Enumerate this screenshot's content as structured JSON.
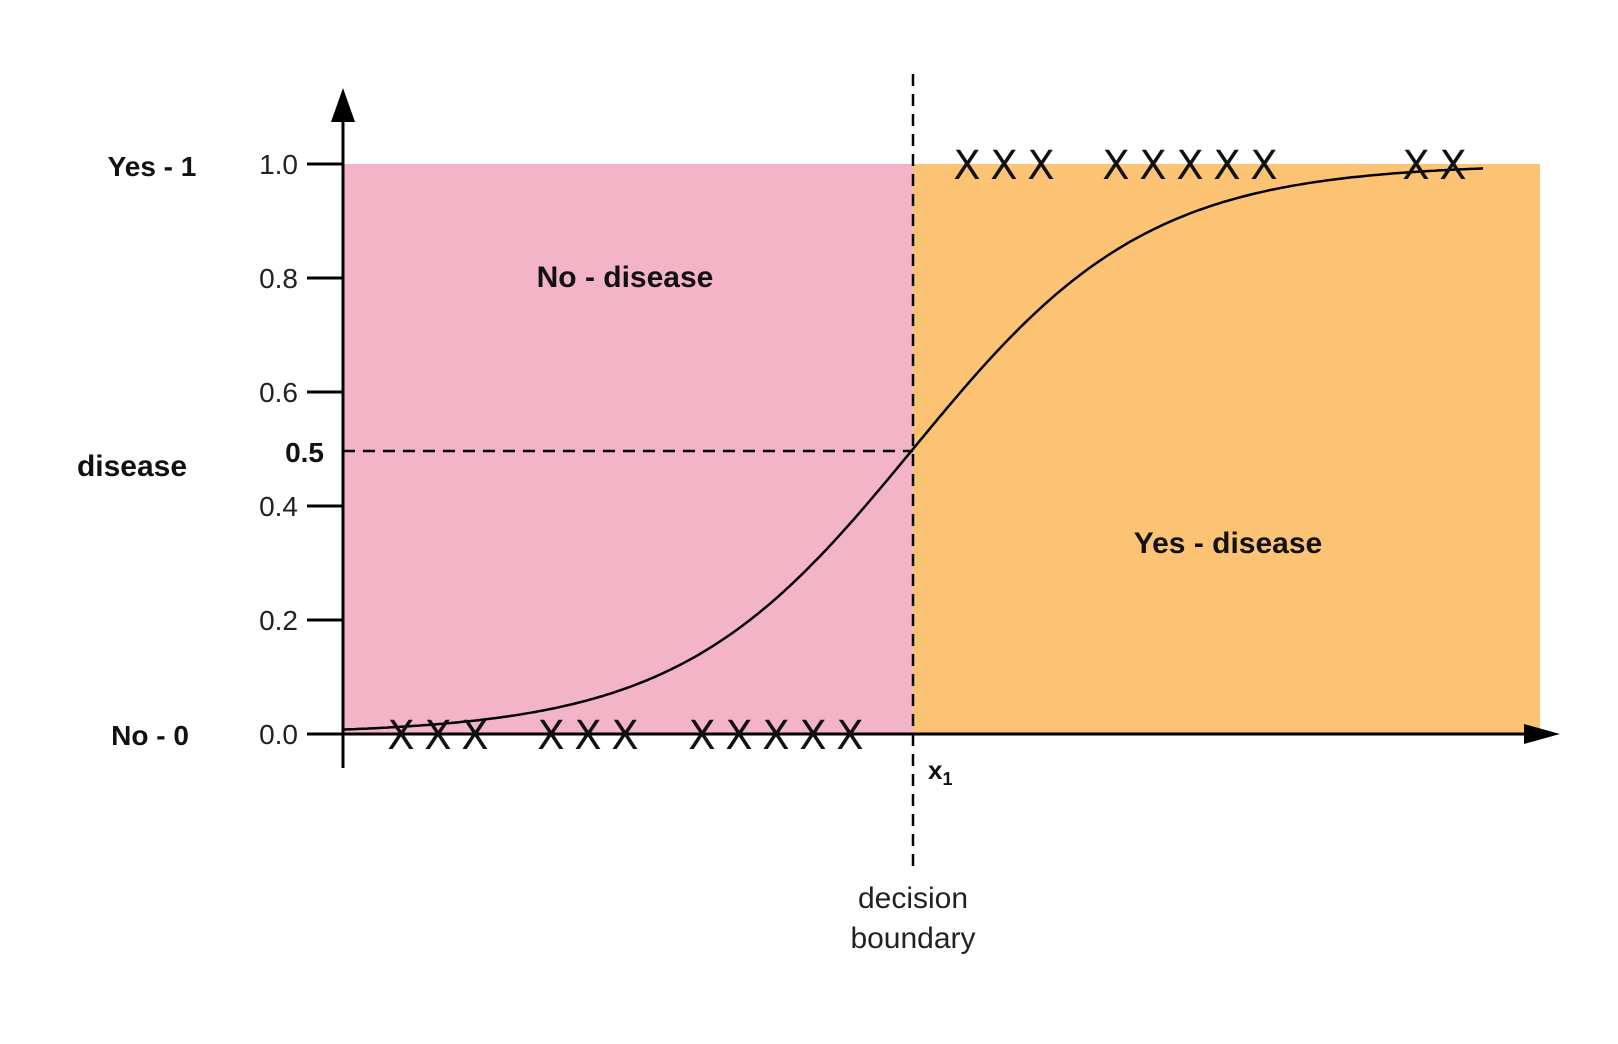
{
  "chart_data": {
    "type": "line",
    "title": "",
    "xlabel": "x1",
    "ylabel": "disease",
    "ylim": [
      0,
      1
    ],
    "y_ticks": [
      "0.0",
      "0.2",
      "0.4",
      "0.6",
      "0.8",
      "1.0"
    ],
    "y_tick_values": [
      0,
      0.2,
      0.4,
      0.6,
      0.8,
      1.0
    ],
    "threshold": {
      "label": "0.5",
      "value": 0.5
    },
    "class_labels": {
      "top": "Yes - 1",
      "bottom": "No - 0"
    },
    "regions": [
      {
        "label": "No - disease",
        "color": "#f4b4c8"
      },
      {
        "label": "Yes - disease",
        "color": "#fcc374"
      }
    ],
    "decision_boundary": {
      "label_line1": "decision",
      "label_line2": "boundary",
      "x_label": "x",
      "x_sub": "1"
    },
    "markers": {
      "symbol": "X",
      "class0": {
        "y": 0,
        "groups": [
          "XXX",
          "XXX",
          "XXXXX"
        ]
      },
      "class1": {
        "y": 1,
        "groups": [
          "XXX",
          "XXXXX",
          "XX"
        ]
      }
    },
    "series": [
      {
        "curve": "sigmoid",
        "color": "#000000"
      }
    ],
    "colors": {
      "axis": "#000000",
      "no_region": "#f4b4c8",
      "yes_region": "#fcc374"
    }
  }
}
